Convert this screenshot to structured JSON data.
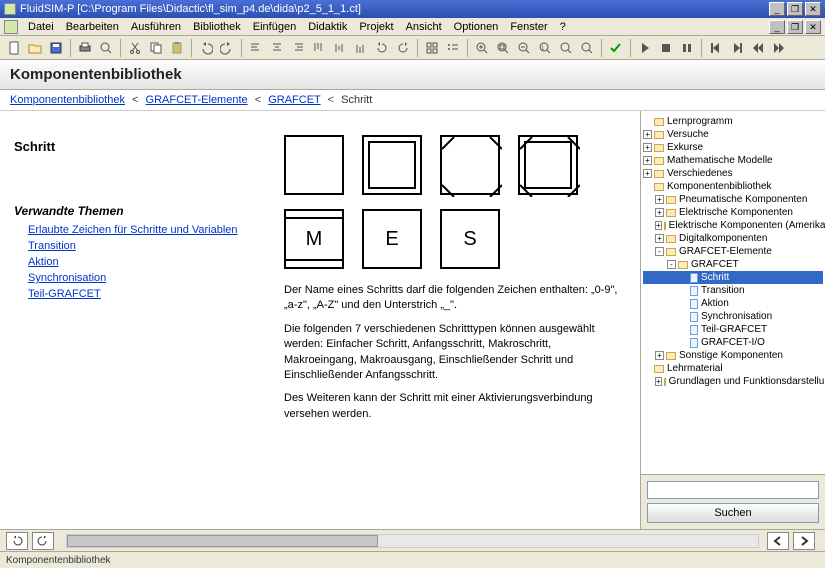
{
  "window": {
    "title": "FluidSIM-P  [C:\\Program Files\\Didactic\\fl_sim_p4.de\\dida\\p2_5_1_1.ct]",
    "min": "_",
    "max": "❐",
    "close": "✕"
  },
  "menu": {
    "items": [
      "Datei",
      "Bearbeiten",
      "Ausführen",
      "Bibliothek",
      "Einfügen",
      "Didaktik",
      "Projekt",
      "Ansicht",
      "Optionen",
      "Fenster",
      "?"
    ]
  },
  "header": {
    "title": "Komponentenbibliothek"
  },
  "breadcrumb": {
    "items": [
      "Komponentenbibliothek",
      "GRAFCET-Elemente",
      "GRAFCET"
    ],
    "current": "Schritt",
    "sep": "<"
  },
  "content": {
    "heading": "Schritt",
    "related_heading": "Verwandte Themen",
    "related": [
      "Erlaubte Zeichen für Schritte und Variablen",
      "Transition",
      "Aktion",
      "Synchronisation",
      "Teil-GRAFCET"
    ],
    "row2_labels": [
      "M",
      "E",
      "S"
    ],
    "para1": "Der Name eines Schritts darf die folgenden Zeichen enthalten: „0-9\", „a-z\", „A-Z\" und den Unterstrich „_\".",
    "para2": "Die folgenden 7 verschiedenen Schritttypen können ausgewählt werden: Einfacher Schritt, Anfangsschritt, Makroschritt, Makroeingang, Makroausgang, Einschließender Schritt und Einschließender Anfangsschritt.",
    "para3": "Des Weiteren kann der Schritt mit einer Aktivierungsverbindung versehen werden."
  },
  "tree": {
    "nodes": [
      {
        "ind": 1,
        "toggle": "",
        "icon": "folder",
        "label": "Lernprogramm"
      },
      {
        "ind": 1,
        "toggle": "+",
        "icon": "folder",
        "label": "Versuche"
      },
      {
        "ind": 1,
        "toggle": "+",
        "icon": "folder",
        "label": "Exkurse"
      },
      {
        "ind": 1,
        "toggle": "+",
        "icon": "folder",
        "label": "Mathematische Modelle"
      },
      {
        "ind": 1,
        "toggle": "+",
        "icon": "folder",
        "label": "Verschiedenes"
      },
      {
        "ind": 1,
        "toggle": "",
        "icon": "folder",
        "label": "Komponentenbibliothek"
      },
      {
        "ind": 2,
        "toggle": "+",
        "icon": "folder",
        "label": "Pneumatische Komponenten"
      },
      {
        "ind": 2,
        "toggle": "+",
        "icon": "folder",
        "label": "Elektrische Komponenten"
      },
      {
        "ind": 2,
        "toggle": "+",
        "icon": "folder",
        "label": "Elektrische Komponenten (Amerikanische Norm)"
      },
      {
        "ind": 2,
        "toggle": "+",
        "icon": "folder",
        "label": "Digitalkomponenten"
      },
      {
        "ind": 2,
        "toggle": "-",
        "icon": "folder",
        "label": "GRAFCET-Elemente"
      },
      {
        "ind": 3,
        "toggle": "-",
        "icon": "folder",
        "label": "GRAFCET"
      },
      {
        "ind": 4,
        "toggle": "",
        "icon": "page",
        "label": "Schritt",
        "selected": true
      },
      {
        "ind": 4,
        "toggle": "",
        "icon": "page",
        "label": "Transition"
      },
      {
        "ind": 4,
        "toggle": "",
        "icon": "page",
        "label": "Aktion"
      },
      {
        "ind": 4,
        "toggle": "",
        "icon": "page",
        "label": "Synchronisation"
      },
      {
        "ind": 4,
        "toggle": "",
        "icon": "page",
        "label": "Teil-GRAFCET"
      },
      {
        "ind": 4,
        "toggle": "",
        "icon": "page",
        "label": "GRAFCET-I/O"
      },
      {
        "ind": 2,
        "toggle": "+",
        "icon": "folder",
        "label": "Sonstige Komponenten"
      },
      {
        "ind": 1,
        "toggle": "",
        "icon": "folder",
        "label": "Lehrmaterial"
      },
      {
        "ind": 2,
        "toggle": "+",
        "icon": "folder",
        "label": "Grundlagen und Funktionsdarstellungen"
      }
    ]
  },
  "search": {
    "placeholder": "",
    "button": "Suchen"
  },
  "status": {
    "text": "Komponentenbibliothek"
  }
}
